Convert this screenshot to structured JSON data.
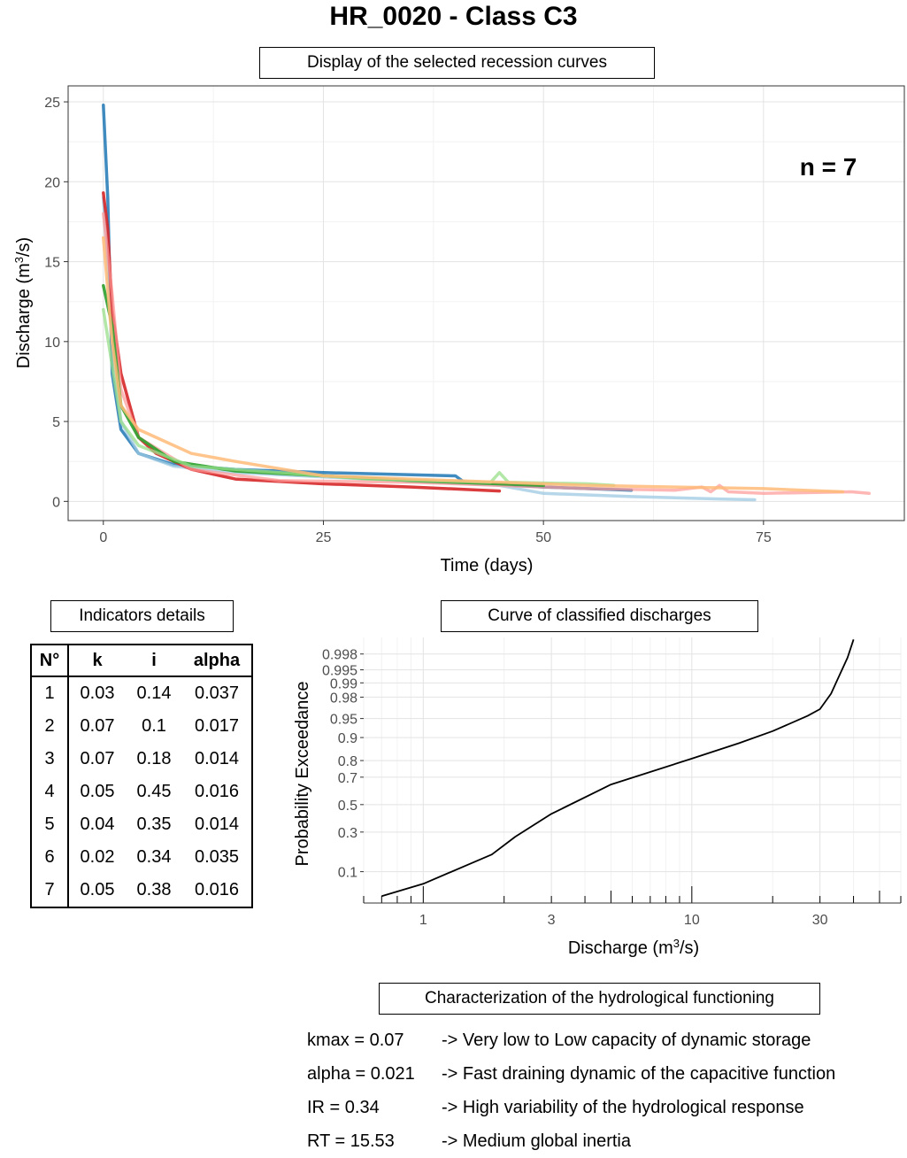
{
  "title": "HR_0020 - Class C3",
  "recession": {
    "box_label": "Display of the selected recession curves",
    "n_label": "n = 7"
  },
  "indicators": {
    "box_label": "Indicators details",
    "headers": [
      "N°",
      "k",
      "i",
      "alpha"
    ],
    "rows": [
      [
        "1",
        "0.03",
        "0.14",
        "0.037"
      ],
      [
        "2",
        "0.07",
        "0.1",
        "0.017"
      ],
      [
        "3",
        "0.07",
        "0.18",
        "0.014"
      ],
      [
        "4",
        "0.05",
        "0.45",
        "0.016"
      ],
      [
        "5",
        "0.04",
        "0.35",
        "0.014"
      ],
      [
        "6",
        "0.02",
        "0.34",
        "0.035"
      ],
      [
        "7",
        "0.05",
        "0.38",
        "0.016"
      ]
    ]
  },
  "classified": {
    "box_label": "Curve of classified discharges"
  },
  "characterization": {
    "box_label": "Characterization of the hydrological functioning",
    "rows": [
      {
        "label": "kmax = 0.07",
        "desc": "-> Very low to Low capacity of dynamic storage"
      },
      {
        "label": "alpha = 0.021",
        "desc": "-> Fast draining dynamic of the capacitive function"
      },
      {
        "label": "IR = 0.34",
        "desc": "-> High variability of the hydrological response"
      },
      {
        "label": "RT = 15.53",
        "desc": "-> Medium global inertia"
      }
    ]
  },
  "chart_data": [
    {
      "type": "line",
      "xlabel": "Time (days)",
      "ylabel": "Discharge (m³/s)",
      "xlim": [
        -4,
        91
      ],
      "ylim": [
        -1.2,
        26
      ],
      "xticks": [
        0,
        25,
        50,
        75
      ],
      "yticks": [
        0,
        5,
        10,
        15,
        20,
        25
      ],
      "grid": true,
      "series": [
        {
          "color": "#1f77b4",
          "alpha": 0.85,
          "points": [
            [
              0,
              24.8
            ],
            [
              0.5,
              19
            ],
            [
              1,
              8
            ],
            [
              2,
              4.5
            ],
            [
              4,
              3
            ],
            [
              8,
              2.3
            ],
            [
              15,
              2
            ],
            [
              25,
              1.8
            ],
            [
              40,
              1.6
            ],
            [
              41,
              1.2
            ],
            [
              50,
              0.9
            ],
            [
              55,
              0.8
            ],
            [
              60,
              0.7
            ]
          ]
        },
        {
          "color": "#9ecae1",
          "alpha": 0.75,
          "points": [
            [
              0,
              19
            ],
            [
              1,
              10
            ],
            [
              2,
              5
            ],
            [
              4,
              3
            ],
            [
              8,
              2.2
            ],
            [
              15,
              1.8
            ],
            [
              30,
              1.4
            ],
            [
              45,
              1
            ],
            [
              50,
              0.5
            ],
            [
              60,
              0.3
            ],
            [
              70,
              0.15
            ],
            [
              74,
              0.1
            ]
          ]
        },
        {
          "color": "#d62728",
          "alpha": 0.9,
          "points": [
            [
              0,
              19.3
            ],
            [
              0.5,
              17
            ],
            [
              1,
              12
            ],
            [
              2,
              8
            ],
            [
              4,
              4
            ],
            [
              6,
              3
            ],
            [
              10,
              2
            ],
            [
              15,
              1.4
            ],
            [
              25,
              1.1
            ],
            [
              35,
              0.9
            ],
            [
              45,
              0.65
            ]
          ]
        },
        {
          "color": "#ff9896",
          "alpha": 0.7,
          "points": [
            [
              0,
              18
            ],
            [
              1,
              13
            ],
            [
              2,
              7
            ],
            [
              4,
              4
            ],
            [
              10,
              2
            ],
            [
              20,
              1.3
            ],
            [
              35,
              1.2
            ],
            [
              45,
              1
            ],
            [
              55,
              0.8
            ],
            [
              65,
              0.7
            ],
            [
              68,
              0.9
            ],
            [
              69,
              0.6
            ],
            [
              70,
              1
            ],
            [
              71,
              0.6
            ],
            [
              75,
              0.5
            ],
            [
              85,
              0.6
            ],
            [
              87,
              0.5
            ]
          ]
        },
        {
          "color": "#2ca02c",
          "alpha": 0.9,
          "points": [
            [
              0,
              13.5
            ],
            [
              1,
              11
            ],
            [
              2,
              6
            ],
            [
              4,
              4
            ],
            [
              8,
              2.5
            ],
            [
              15,
              1.9
            ],
            [
              25,
              1.6
            ],
            [
              35,
              1.3
            ],
            [
              45,
              1.1
            ],
            [
              50,
              1
            ]
          ]
        },
        {
          "color": "#98df8a",
          "alpha": 0.75,
          "points": [
            [
              0,
              12
            ],
            [
              1,
              8.5
            ],
            [
              2,
              5
            ],
            [
              4,
              3.5
            ],
            [
              10,
              2.2
            ],
            [
              20,
              1.8
            ],
            [
              30,
              1.4
            ],
            [
              44,
              1.2
            ],
            [
              45,
              1.8
            ],
            [
              46,
              1.2
            ],
            [
              55,
              1.1
            ],
            [
              58,
              1
            ]
          ]
        },
        {
          "color": "#ffbb78",
          "alpha": 0.85,
          "points": [
            [
              0,
              16.5
            ],
            [
              1,
              10
            ],
            [
              2,
              6
            ],
            [
              4,
              4.5
            ],
            [
              6,
              4
            ],
            [
              10,
              3
            ],
            [
              15,
              2.5
            ],
            [
              25,
              1.6
            ],
            [
              40,
              1.3
            ],
            [
              55,
              1
            ],
            [
              65,
              0.9
            ],
            [
              75,
              0.8
            ],
            [
              84,
              0.6
            ]
          ]
        }
      ]
    },
    {
      "type": "line",
      "xlabel": "Discharge (m³/s)",
      "ylabel": "Probability Exceedance",
      "x_scale": "log",
      "y_scale": "probit",
      "xlim": [
        0.6,
        60
      ],
      "ylim": [
        0.03,
        0.9993
      ],
      "xticks": [
        1,
        3,
        10,
        30
      ],
      "yticks": [
        0.1,
        0.3,
        0.5,
        0.7,
        0.8,
        0.9,
        0.95,
        0.98,
        0.99,
        0.995,
        0.998
      ],
      "grid": true,
      "series": [
        {
          "color": "#000000",
          "points": [
            [
              0.7,
              0.04
            ],
            [
              1,
              0.065
            ],
            [
              1.5,
              0.13
            ],
            [
              1.8,
              0.17
            ],
            [
              2.2,
              0.27
            ],
            [
              3,
              0.43
            ],
            [
              5,
              0.65
            ],
            [
              10,
              0.81
            ],
            [
              15,
              0.88
            ],
            [
              20,
              0.92
            ],
            [
              27,
              0.955
            ],
            [
              30,
              0.966
            ],
            [
              33,
              0.983
            ],
            [
              35,
              0.992
            ],
            [
              38,
              0.9975
            ],
            [
              40,
              0.9992
            ]
          ]
        }
      ]
    }
  ]
}
